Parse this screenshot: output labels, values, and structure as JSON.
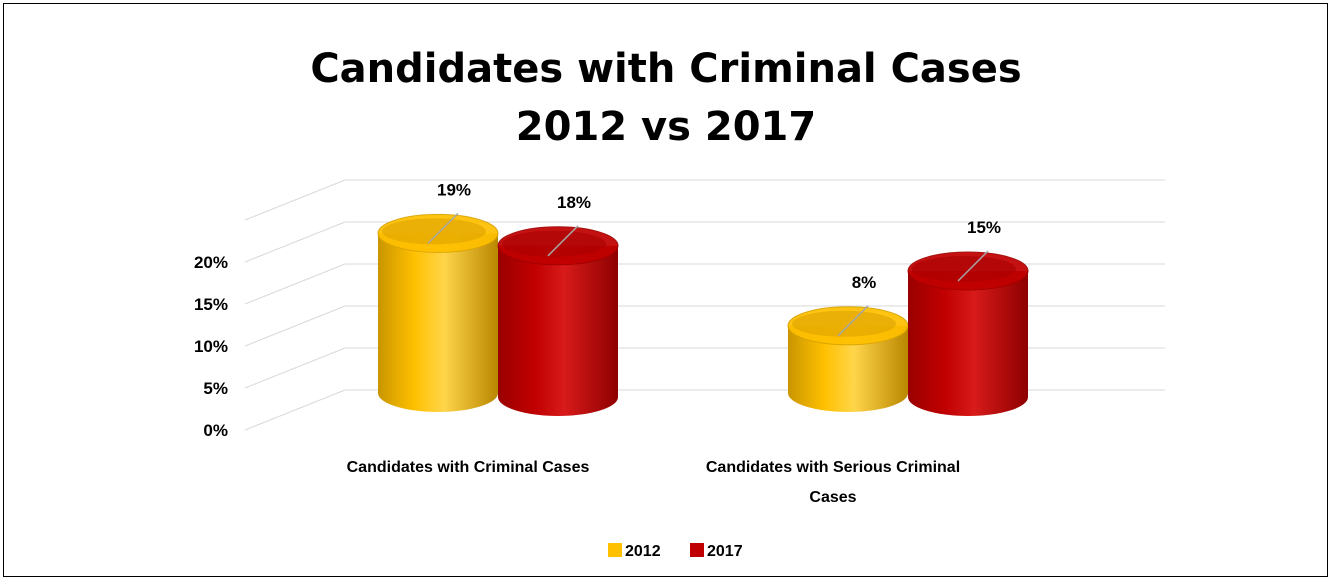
{
  "chart_data": {
    "type": "bar",
    "style": "3d-cylinder",
    "title_lines": [
      "Candidates with Criminal Cases",
      "2012 vs 2017"
    ],
    "categories": [
      [
        "Candidates with Criminal Cases"
      ],
      [
        "Candidates with Serious Criminal",
        "Cases"
      ]
    ],
    "series": [
      {
        "name": "2012",
        "values": [
          19,
          8
        ],
        "color": "#FFC000"
      },
      {
        "name": "2017",
        "values": [
          18,
          15
        ],
        "color": "#C00000"
      }
    ],
    "data_labels": [
      [
        "19%",
        "8%"
      ],
      [
        "18%",
        "15%"
      ]
    ],
    "y_ticks": [
      "0%",
      "5%",
      "10%",
      "15%",
      "20%"
    ],
    "ylim": [
      0,
      20
    ],
    "grid": true,
    "legend_position": "bottom"
  }
}
